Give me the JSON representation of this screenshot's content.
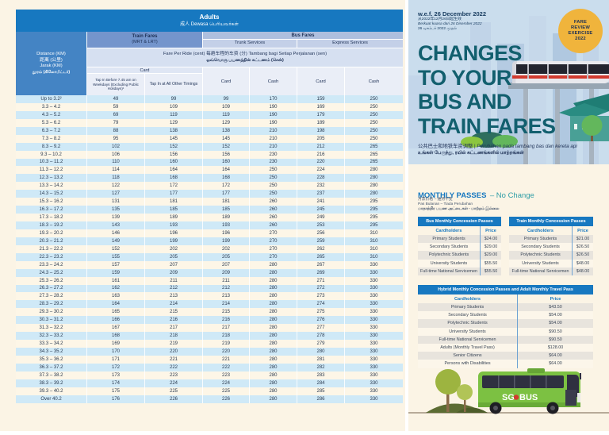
{
  "left_page": {
    "title": "Adults",
    "subtitle": "成人   Dewasa   பெரியவர்கள்",
    "header": {
      "distance": [
        "Distance (KM)",
        "距离 (公里)",
        "Jarak (KM)",
        "தூரம் (கிலோமீட்டர்)"
      ],
      "train_fares": "Train Fares",
      "train_fares_sub": "(MRT & LRT)",
      "bus_fares": "Bus Fares",
      "trunk_services": "Trunk Services",
      "express_services": "Express Services",
      "fare_per_ride_l1": "Fare Per Ride (cent)  每趟车程的车资 (分)  Tambang bagi Setiap Perjalanan (sen)",
      "fare_per_ride_l2": "ஒவ்வொரு பயணத்தின் கட்டணம் (சென்)",
      "card_group": "Card",
      "col_tap_early": "Tap In Before 7.45 am on Weekdays (Excluding Public Holidays)¹",
      "col_tap_other": "Tap In at All Other Timings",
      "trunk_card": "Card",
      "trunk_cash": "Cash",
      "express_card": "Card",
      "express_cash": "Cash"
    },
    "rows": [
      [
        "Up to 3.2²",
        49,
        99,
        99,
        170,
        159,
        250
      ],
      [
        "3.3 – 4.2",
        59,
        109,
        109,
        190,
        169,
        250
      ],
      [
        "4.3 – 5.2",
        69,
        119,
        119,
        190,
        179,
        250
      ],
      [
        "5.3 – 6.2",
        79,
        129,
        129,
        190,
        189,
        250
      ],
      [
        "6.3 – 7.2",
        88,
        138,
        138,
        210,
        198,
        250
      ],
      [
        "7.3 – 8.2",
        95,
        145,
        145,
        210,
        205,
        250
      ],
      [
        "8.3 – 9.2",
        102,
        152,
        152,
        210,
        212,
        265
      ],
      [
        "9.3 – 10.2",
        106,
        156,
        156,
        230,
        216,
        265
      ],
      [
        "10.3 – 11.2",
        110,
        160,
        160,
        230,
        220,
        265
      ],
      [
        "11.3 – 12.2",
        114,
        164,
        164,
        250,
        224,
        280
      ],
      [
        "12.3 – 13.2",
        118,
        168,
        168,
        250,
        228,
        280
      ],
      [
        "13.3 – 14.2",
        122,
        172,
        172,
        250,
        232,
        280
      ],
      [
        "14.3 – 15.2",
        127,
        177,
        177,
        250,
        237,
        280
      ],
      [
        "15.3 – 16.2",
        131,
        181,
        181,
        260,
        241,
        295
      ],
      [
        "16.3 – 17.2",
        135,
        185,
        185,
        260,
        245,
        295
      ],
      [
        "17.3 – 18.2",
        139,
        189,
        189,
        260,
        249,
        295
      ],
      [
        "18.3 – 19.2",
        143,
        193,
        193,
        260,
        253,
        295
      ],
      [
        "19.3 – 20.2",
        146,
        196,
        196,
        270,
        256,
        310
      ],
      [
        "20.3 – 21.2",
        149,
        199,
        199,
        270,
        259,
        310
      ],
      [
        "21.3 – 22.2",
        152,
        202,
        202,
        270,
        262,
        310
      ],
      [
        "22.3 – 23.2",
        155,
        205,
        205,
        270,
        265,
        310
      ],
      [
        "23.3 – 24.2",
        157,
        207,
        207,
        280,
        267,
        330
      ],
      [
        "24.3 – 25.2",
        159,
        209,
        209,
        280,
        269,
        330
      ],
      [
        "25.3 – 26.2",
        161,
        211,
        211,
        280,
        271,
        330
      ],
      [
        "26.3 – 27.2",
        162,
        212,
        212,
        280,
        272,
        330
      ],
      [
        "27.3 – 28.2",
        163,
        213,
        213,
        280,
        273,
        330
      ],
      [
        "28.3 – 29.2",
        164,
        214,
        214,
        280,
        274,
        330
      ],
      [
        "29.3 – 30.2",
        165,
        215,
        215,
        280,
        275,
        330
      ],
      [
        "30.3 – 31.2",
        166,
        216,
        216,
        280,
        276,
        330
      ],
      [
        "31.3 – 32.2",
        167,
        217,
        217,
        280,
        277,
        330
      ],
      [
        "32.3 – 33.2",
        168,
        218,
        218,
        280,
        278,
        330
      ],
      [
        "33.3 – 34.2",
        169,
        219,
        219,
        280,
        279,
        330
      ],
      [
        "34.3 – 35.2",
        170,
        220,
        220,
        280,
        280,
        330
      ],
      [
        "35.3 – 36.2",
        171,
        221,
        221,
        280,
        281,
        330
      ],
      [
        "36.3 – 37.2",
        172,
        222,
        222,
        280,
        282,
        330
      ],
      [
        "37.3 – 38.2",
        173,
        223,
        223,
        280,
        283,
        330
      ],
      [
        "38.3 – 39.2",
        174,
        224,
        224,
        280,
        284,
        330
      ],
      [
        "39.3 – 40.2",
        175,
        225,
        225,
        280,
        285,
        330
      ],
      [
        "Over 40.2",
        176,
        226,
        226,
        280,
        286,
        330
      ]
    ]
  },
  "right_page": {
    "effective": {
      "en": "w.e.f. 26 December 2022",
      "zh": "从2022年12月26日起生效",
      "ms": "Berkuat kuasa dari 26 Disember 2022",
      "ta": "26 டிசம்பர் 2022 முதல்"
    },
    "badge": {
      "l1": "FARE",
      "l2": "REVIEW",
      "l3": "EXERCISE",
      "l4": "2022"
    },
    "title": {
      "l1": "CHANGES",
      "l2": "TO YOUR",
      "l3": "BUS AND",
      "l4": "TRAIN FARES"
    },
    "subtitle": {
      "zh": "公共巴士和地铁车资调整",
      "sep": "|",
      "ms": "Perubahan pada tambang bas dan kereta api",
      "ta": "உங்கள் பேருந்து, ரயில் கட்டணங்களில் மாற்றங்கள்"
    },
    "monthly": {
      "heading": "MONTHLY PASSES",
      "heading_suffix": "– No Change",
      "sub_zh": "月票价格 – 维持不变",
      "sub_ms": "Pas Bulanan – Tiada Perubahan",
      "sub_ta": "மாதாந்திர பயண அட்டைகள் - மாற்றம் இல்லை",
      "bus_table": {
        "title": "Bus Monthly Concession Passes",
        "col1": "Cardholders",
        "col2": "Price",
        "rows": [
          [
            "Primary Students",
            "$24.00"
          ],
          [
            "Secondary Students",
            "$29.00"
          ],
          [
            "Polytechnic Students",
            "$29.00"
          ],
          [
            "University Students",
            "$55.50"
          ],
          [
            "Full-time National Servicemen",
            "$55.50"
          ]
        ]
      },
      "train_table": {
        "title": "Train Monthly Concession Passes",
        "col1": "Cardholders",
        "col2": "Price",
        "rows": [
          [
            "Primary Students",
            "$21.00"
          ],
          [
            "Secondary Students",
            "$26.50"
          ],
          [
            "Polytechnic Students",
            "$26.50"
          ],
          [
            "University Students",
            "$48.00"
          ],
          [
            "Full-time National Servicemen",
            "$48.00"
          ]
        ]
      },
      "hybrid_table": {
        "title": "Hybrid Monthly Concession Passes and Adult Monthly Travel Pass",
        "col1": "Cardholders",
        "col2": "Price",
        "rows": [
          [
            "Primary Students",
            "$43.50"
          ],
          [
            "Secondary Students",
            "$54.00"
          ],
          [
            "Polytechnic Students",
            "$54.00"
          ],
          [
            "University Students",
            "$90.50"
          ],
          [
            "Full-time National Servicemen",
            "$90.50"
          ],
          [
            "Adults (Monthly Travel Pass)",
            "$128.00"
          ],
          [
            "Senior Citizens",
            "$64.00"
          ],
          [
            "Persons with Disabilities",
            "$64.00"
          ]
        ]
      }
    },
    "bus_logo": {
      "sg": "SG",
      "bus": "BUS"
    }
  },
  "colors": {
    "accent_blue": "#1778c0",
    "distance_head_blue": "#4484c4",
    "stripe_blue": "#cfe9f7",
    "stripe_cream": "#fdf6e7",
    "page_cream": "#fbf4e5",
    "hero_blue": "#cadded",
    "title_teal": "#125f6e",
    "badge_yellow": "#f0b43c",
    "no_change_teal": "#2f9da6",
    "bus_green": "#7cc142",
    "train_red_stripe": "#d23a2e"
  }
}
